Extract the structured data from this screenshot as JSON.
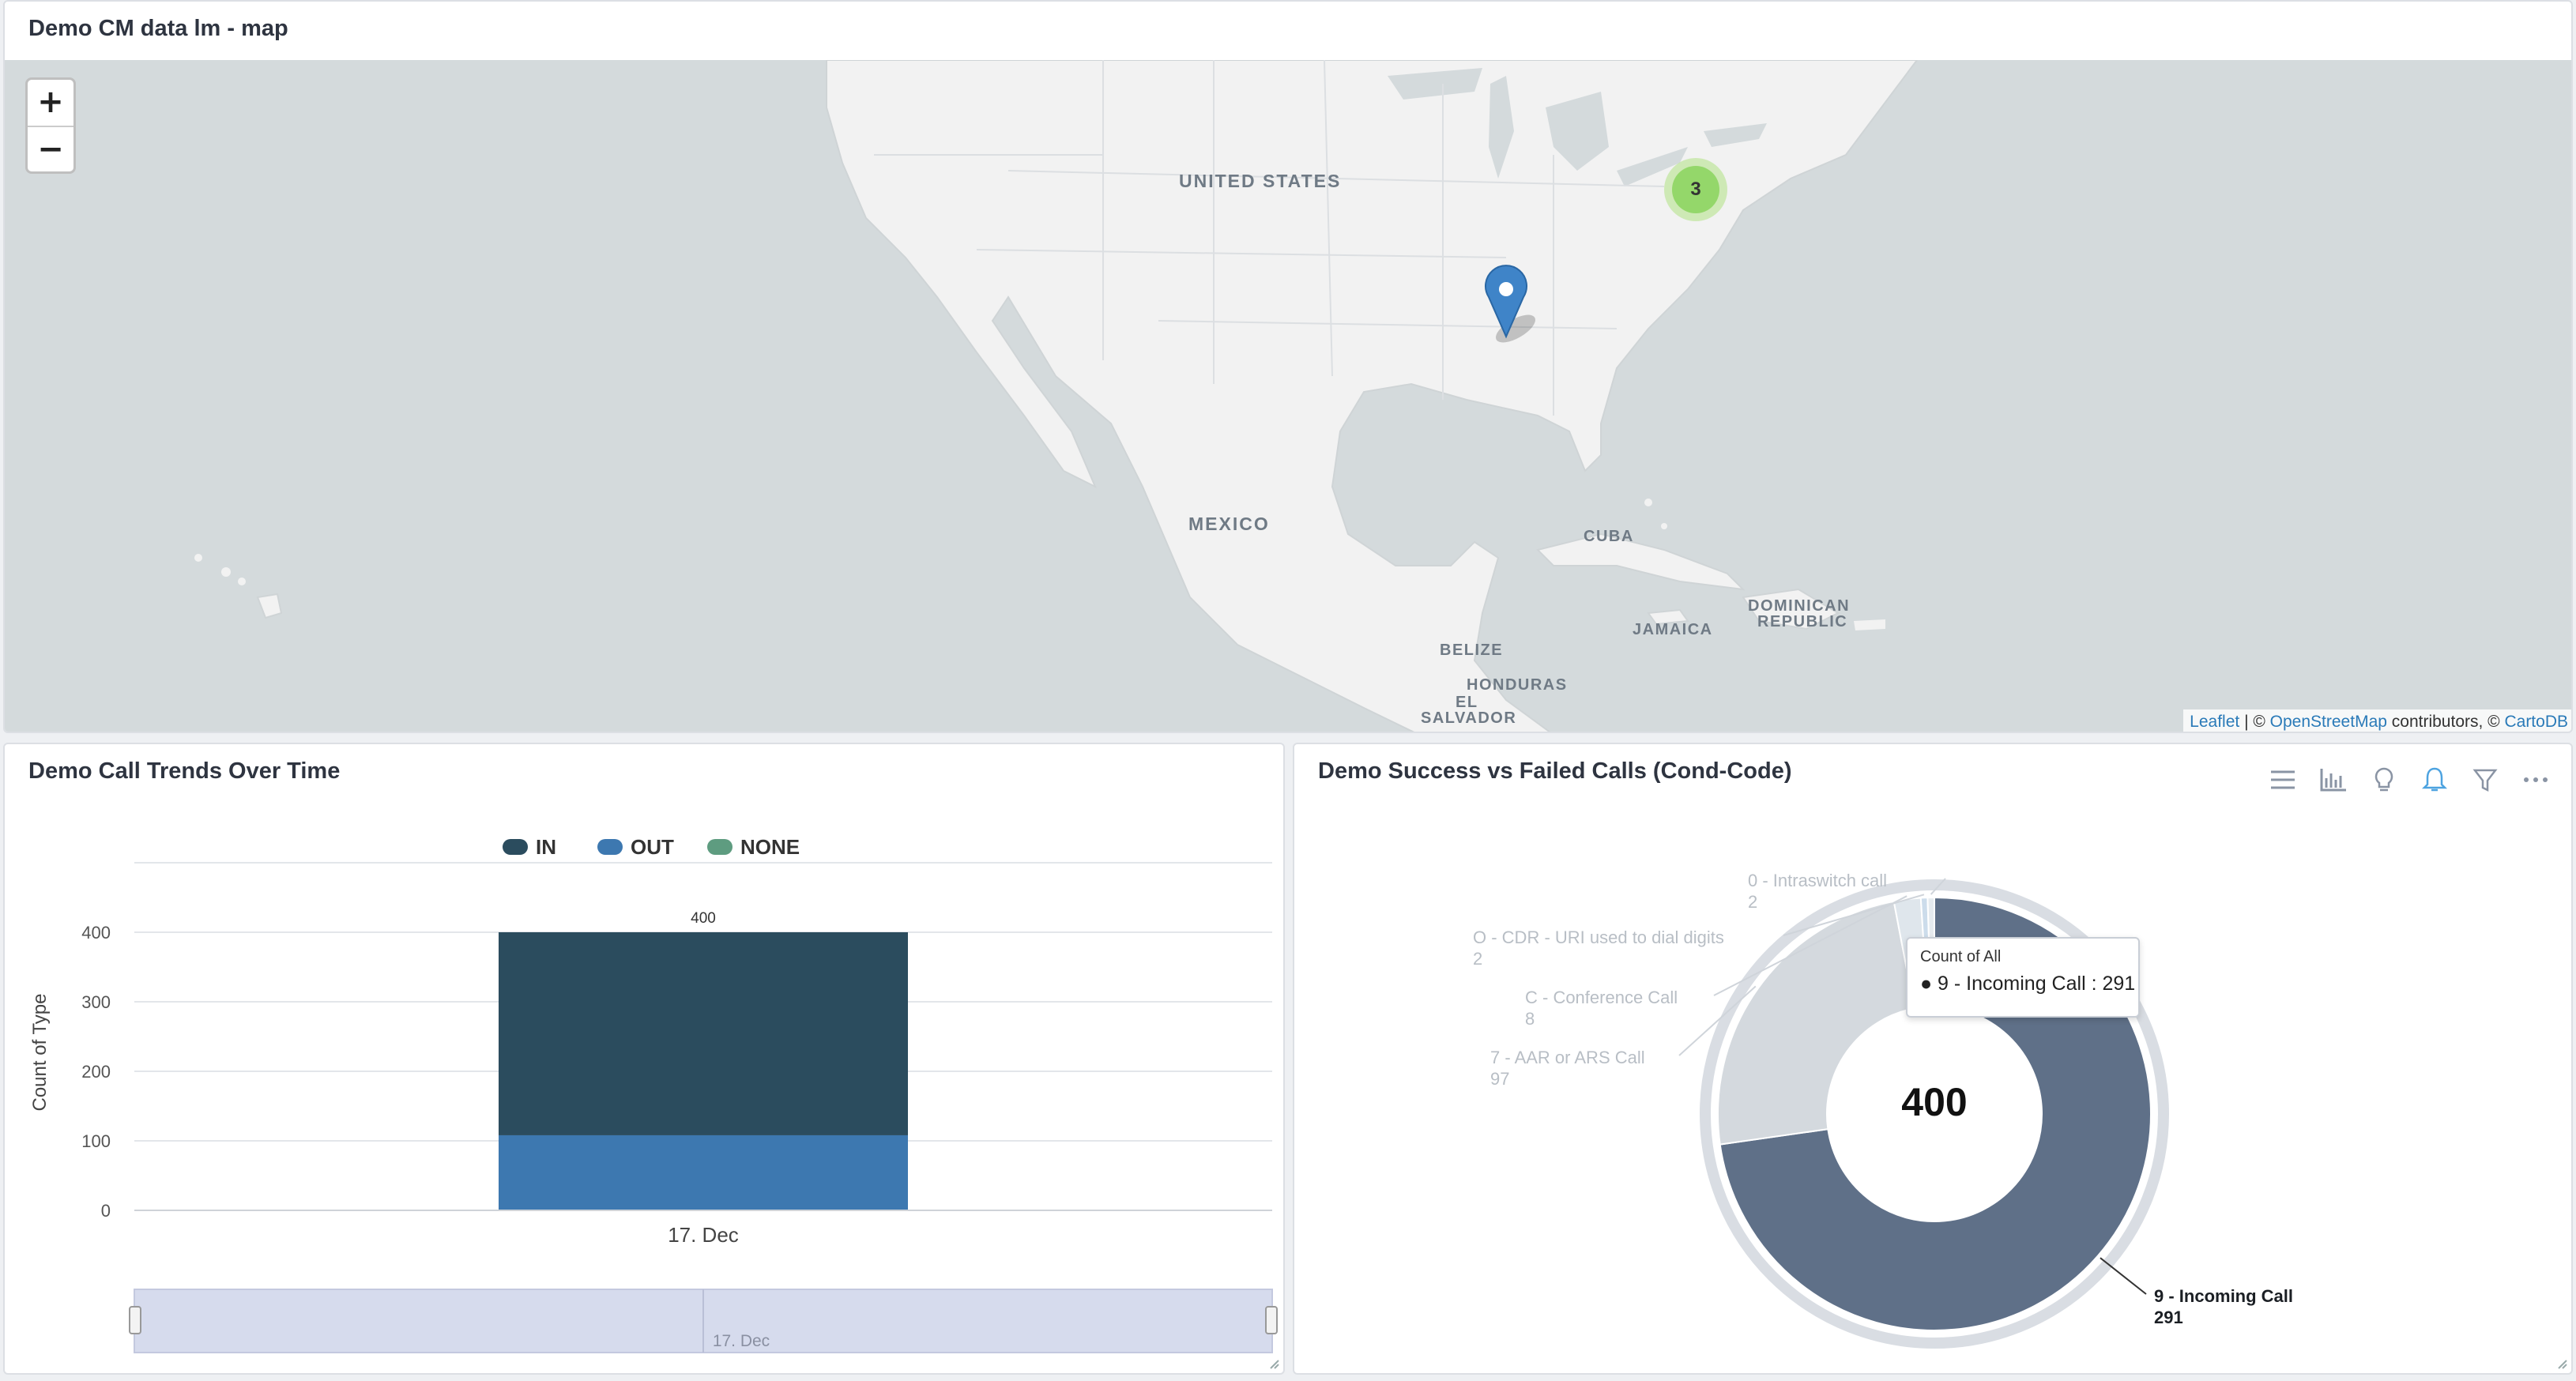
{
  "map_panel": {
    "title": "Demo CM data lm - map",
    "zoom_in_label": "+",
    "zoom_out_label": "−",
    "labels": {
      "united_states": "UNITED STATES",
      "mexico": "MEXICO",
      "cuba": "CUBA",
      "dominican": "DOMINICAN",
      "republic": "REPUBLIC",
      "jamaica": "JAMAICA",
      "belize": "BELIZE",
      "honduras": "HONDURAS",
      "el": "EL",
      "salvador": "SALVADOR"
    },
    "cluster_count": "3",
    "attribution": {
      "leaflet": "Leaflet",
      "separator": " | © ",
      "osm": "OpenStreetMap",
      "middle": " contributors, © ",
      "carto": "CartoDB"
    },
    "colors": {
      "water": "#d4dadc",
      "land": "#f2f2f2",
      "marker": "#3f84c8",
      "cluster": "#6ecc39"
    }
  },
  "trend_panel": {
    "title": "Demo Call Trends Over Time",
    "navigator_label": "17. Dec"
  },
  "cond_panel": {
    "title": "Demo Success vs Failed Calls (Cond-Code)",
    "toolbar_icons": [
      "menu-icon",
      "bar-chart-icon",
      "lightbulb-icon",
      "bell-icon",
      "funnel-icon",
      "more-icon"
    ],
    "tooltip": {
      "title": "Count of All",
      "line": "● 9 - Incoming Call : 291"
    }
  },
  "chart_data": [
    {
      "type": "bar",
      "stacked": true,
      "categories": [
        "17. Dec"
      ],
      "series": [
        {
          "name": "IN",
          "values": [
            292
          ],
          "color": "#2b4c5e"
        },
        {
          "name": "OUT",
          "values": [
            108
          ],
          "color": "#3d78b0"
        },
        {
          "name": "NONE",
          "values": [
            0
          ],
          "color": "#5e9c80"
        }
      ],
      "total_labels": [
        "400"
      ],
      "ylabel": "Count of Type",
      "yticks": [
        0,
        100,
        200,
        300,
        400
      ],
      "ylim": [
        0,
        500
      ],
      "legend": "top-center",
      "grid": true
    },
    {
      "type": "pie",
      "donut": true,
      "center_label": "400",
      "slices": [
        {
          "label": "9 - Incoming Call",
          "value": 291,
          "value_text": "291",
          "color": "#5f7088",
          "label_color": "#1b1f24"
        },
        {
          "label": "7 - AAR or ARS Call",
          "value": 97,
          "value_text": "97",
          "color": "#d4d9de",
          "label_color": "#b8bec5"
        },
        {
          "label": "C - Conference Call",
          "value": 8,
          "value_text": "8",
          "color": "#dfe6ec",
          "label_color": "#b8bec5"
        },
        {
          "label": "O - CDR - URI used to dial digits",
          "value": 2,
          "value_text": "2",
          "color": "#ccdceb",
          "label_color": "#b8bec5"
        },
        {
          "label": "0 - Intraswitch call",
          "value": 2,
          "value_text": "2",
          "color": "#e6ebef",
          "label_color": "#b8bec5"
        }
      ]
    }
  ]
}
